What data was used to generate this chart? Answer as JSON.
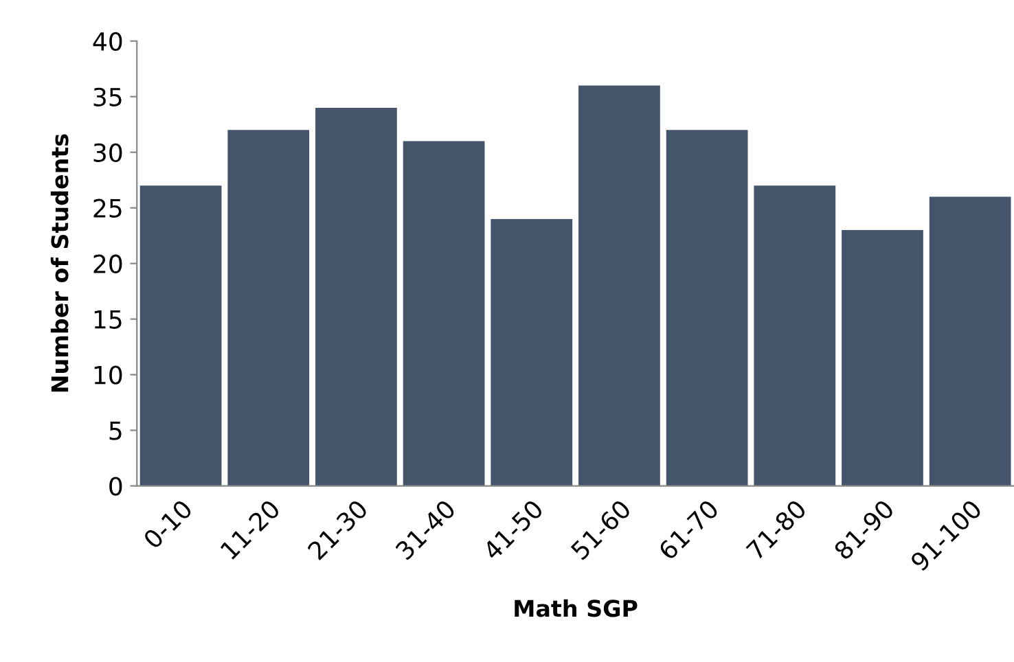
{
  "chart_data": {
    "type": "bar",
    "xlabel": "Math SGP",
    "ylabel": "Number of Students",
    "categories": [
      "0-10",
      "11-20",
      "21-30",
      "31-40",
      "41-50",
      "51-60",
      "61-70",
      "71-80",
      "81-90",
      "91-100"
    ],
    "values": [
      27,
      32,
      34,
      31,
      24,
      36,
      32,
      27,
      23,
      26
    ],
    "color": "#44546a",
    "ylim": [
      0,
      40
    ],
    "yticks": [
      0,
      5,
      10,
      15,
      20,
      25,
      30,
      35,
      40
    ],
    "grid": false
  }
}
